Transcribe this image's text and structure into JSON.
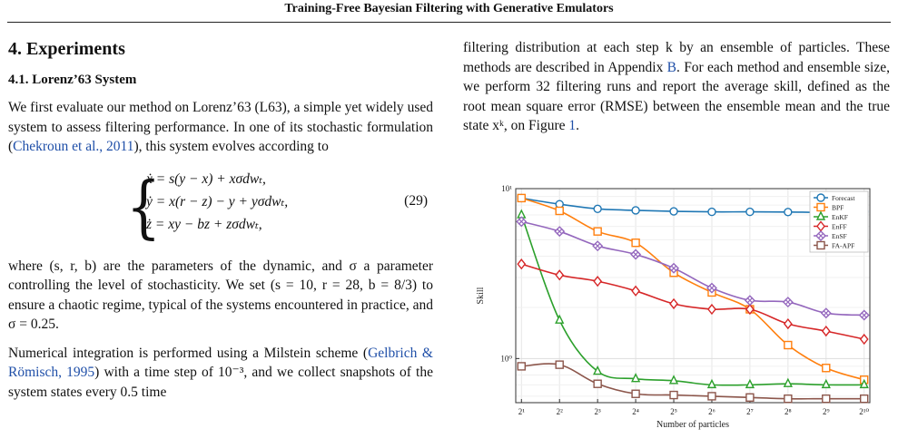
{
  "header": {
    "running_title": "Training-Free Bayesian Filtering with Generative Emulators"
  },
  "left": {
    "section": "4. Experiments",
    "subsection": "4.1. Lorenz’63 System",
    "p1_a": "We first evaluate our method on Lorenz’63 (L63), a simple yet widely used system to assess filtering performance. In one of its stochastic formulation (",
    "p1_cite": "Chekroun et al., 2011",
    "p1_b": "), this system evolves according to",
    "eq1": "ẋ = s(y − x) + xσdwₜ,",
    "eq2": "ẏ = x(r − z) − y + yσdwₜ,",
    "eq3": "ż = xy − bz + zσdwₜ,",
    "eq_number": "(29)",
    "p2": "where (s, r, b) are the parameters of the dynamic, and σ a parameter controlling the level of stochasticity. We set (s = 10, r = 28, b = 8/3) to ensure a chaotic regime, typical of the systems encountered in practice, and σ = 0.25.",
    "p3_a": "Numerical integration is performed using a Milstein scheme (",
    "p3_cite": "Gelbrich & Römisch, 1995",
    "p3_b": ") with a time step of 10⁻³, and we collect snapshots of the system states every 0.5 time"
  },
  "right": {
    "p1_a": "filtering distribution at each step k by an ensemble of particles. These methods are described in Appendix ",
    "p1_ref_appendix": "B",
    "p1_b": ". For each method and ensemble size, we perform 32 filtering runs and report the average skill, defined as the root mean square error (RMSE) between the ensemble mean and the true state xᵏ, on Figure ",
    "p1_ref_figure": "1",
    "p1_c": "."
  },
  "chart_data": {
    "type": "line",
    "xlabel": "Number of particles",
    "ylabel": "Skill",
    "y_scale": "log",
    "ylim": [
      0.55,
      10
    ],
    "grid": true,
    "legend_position": "top-right",
    "x": [
      2,
      4,
      8,
      16,
      32,
      64,
      128,
      256,
      512,
      1024
    ],
    "x_tick_labels": [
      "2¹",
      "2²",
      "2³",
      "2⁴",
      "2⁵",
      "2⁶",
      "2⁷",
      "2⁸",
      "2⁹",
      "2¹⁰"
    ],
    "y_tick_labels": [
      "10⁰",
      "10¹"
    ],
    "series": [
      {
        "name": "Forecast",
        "color": "#1f77b4",
        "marker": "circle",
        "values": [
          8.8,
          8.1,
          7.6,
          7.45,
          7.35,
          7.3,
          7.3,
          7.28,
          7.25,
          7.3
        ]
      },
      {
        "name": "BPF",
        "color": "#ff7f0e",
        "marker": "square",
        "values": [
          8.8,
          7.4,
          5.6,
          4.8,
          3.2,
          2.45,
          1.95,
          1.2,
          0.88,
          0.75
        ]
      },
      {
        "name": "EnKF",
        "color": "#2ca02c",
        "marker": "triangle",
        "values": [
          7.0,
          1.68,
          0.84,
          0.76,
          0.74,
          0.7,
          0.7,
          0.71,
          0.7,
          0.7
        ]
      },
      {
        "name": "EnFF",
        "color": "#d62728",
        "marker": "diamond",
        "values": [
          3.6,
          3.1,
          2.85,
          2.5,
          2.1,
          1.95,
          1.95,
          1.6,
          1.45,
          1.3
        ]
      },
      {
        "name": "EnSF",
        "color": "#9467bd",
        "marker": "x",
        "values": [
          6.4,
          5.6,
          4.6,
          4.1,
          3.4,
          2.6,
          2.2,
          2.15,
          1.85,
          1.8
        ]
      },
      {
        "name": "FA-APF",
        "color": "#8c564b",
        "marker": "square",
        "values": [
          0.9,
          0.92,
          0.71,
          0.62,
          0.61,
          0.6,
          0.59,
          0.58,
          0.58,
          0.58
        ]
      }
    ]
  }
}
